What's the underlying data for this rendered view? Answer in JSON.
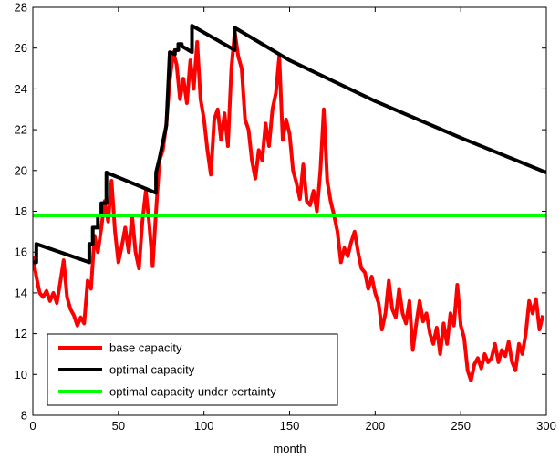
{
  "chart_data": {
    "type": "line",
    "title": "",
    "xlabel": "month",
    "ylabel": "",
    "xlim": [
      0,
      300
    ],
    "ylim": [
      8,
      28
    ],
    "xticks": [
      0,
      50,
      100,
      150,
      200,
      250,
      300
    ],
    "yticks": [
      8,
      10,
      12,
      14,
      16,
      18,
      20,
      22,
      24,
      26,
      28
    ],
    "grid": false,
    "legend_position": "bottom-left",
    "series": [
      {
        "name": "base capacity",
        "color": "#ff0000",
        "x": [
          0,
          2,
          4,
          6,
          8,
          10,
          12,
          14,
          16,
          18,
          20,
          22,
          24,
          26,
          28,
          30,
          32,
          34,
          36,
          38,
          40,
          42,
          44,
          46,
          48,
          50,
          52,
          54,
          56,
          58,
          60,
          62,
          64,
          66,
          68,
          70,
          72,
          74,
          76,
          78,
          80,
          82,
          84,
          86,
          88,
          90,
          92,
          94,
          96,
          98,
          100,
          102,
          104,
          106,
          108,
          110,
          112,
          114,
          116,
          118,
          120,
          122,
          124,
          126,
          128,
          130,
          132,
          134,
          136,
          138,
          140,
          142,
          144,
          146,
          148,
          150,
          152,
          154,
          156,
          158,
          160,
          162,
          164,
          166,
          168,
          170,
          172,
          174,
          176,
          178,
          180,
          182,
          184,
          186,
          188,
          190,
          192,
          194,
          196,
          198,
          200,
          202,
          204,
          206,
          208,
          210,
          212,
          214,
          216,
          218,
          220,
          222,
          224,
          226,
          228,
          230,
          232,
          234,
          236,
          238,
          240,
          242,
          244,
          246,
          248,
          250,
          252,
          254,
          256,
          258,
          260,
          262,
          264,
          266,
          268,
          270,
          272,
          274,
          276,
          278,
          280,
          282,
          284,
          286,
          288,
          290,
          292,
          294,
          296,
          298
        ],
        "y": [
          15.8,
          14.8,
          14.0,
          13.8,
          14.1,
          13.6,
          14.0,
          13.5,
          14.5,
          15.6,
          13.8,
          13.2,
          12.9,
          12.4,
          12.8,
          12.5,
          14.6,
          14.2,
          16.8,
          16.0,
          17.2,
          18.5,
          17.5,
          19.5,
          17.0,
          15.5,
          16.3,
          17.2,
          16.0,
          17.8,
          16.0,
          15.2,
          17.5,
          19.0,
          17.4,
          15.3,
          18.0,
          20.5,
          21.0,
          22.3,
          24.4,
          25.8,
          25.2,
          23.5,
          24.5,
          23.3,
          25.4,
          24.0,
          26.3,
          23.5,
          22.5,
          21.0,
          19.8,
          22.5,
          23.0,
          21.5,
          22.8,
          21.2,
          25.0,
          26.8,
          25.6,
          25.0,
          22.5,
          22.0,
          20.5,
          19.6,
          21.0,
          20.5,
          22.3,
          21.2,
          23.0,
          23.8,
          25.6,
          21.5,
          22.5,
          21.8,
          20.0,
          19.4,
          18.6,
          20.3,
          18.5,
          18.3,
          19.0,
          18.0,
          20.0,
          23.0,
          19.5,
          18.5,
          17.8,
          17.0,
          15.5,
          16.2,
          15.8,
          16.5,
          17.0,
          16.0,
          15.2,
          15.0,
          14.2,
          14.8,
          14.0,
          13.5,
          12.2,
          13.0,
          14.6,
          13.2,
          12.8,
          14.2,
          13.0,
          12.5,
          13.6,
          11.2,
          12.5,
          13.6,
          12.6,
          13.0,
          12.0,
          11.5,
          12.3,
          11.0,
          12.5,
          11.5,
          13.0,
          12.4,
          14.4,
          12.4,
          11.8,
          10.2,
          9.7,
          10.5,
          10.8,
          10.3,
          11.0,
          10.6,
          10.8,
          11.5,
          10.6,
          11.2,
          10.9,
          11.6,
          10.6,
          10.2,
          11.5,
          11.0,
          12.0,
          13.6,
          13.0,
          13.7,
          12.2,
          12.9
        ]
      },
      {
        "name": "optimal capacity",
        "color": "#000000",
        "x": [
          0,
          2,
          2,
          33,
          33,
          35,
          35,
          38,
          38,
          40,
          40,
          43,
          43,
          72,
          72,
          74,
          74,
          76,
          76,
          78,
          78,
          80,
          80,
          83,
          83,
          85,
          85,
          87,
          87,
          93,
          93,
          118,
          118,
          150,
          200,
          250,
          300
        ],
        "y": [
          15.5,
          15.5,
          16.4,
          15.5,
          16.4,
          16.4,
          17.2,
          17.2,
          17.8,
          17.8,
          18.4,
          18.4,
          19.9,
          18.9,
          19.9,
          20.6,
          20.6,
          21.4,
          21.4,
          22.2,
          22.2,
          25.8,
          25.8,
          25.7,
          25.9,
          25.9,
          26.2,
          26.2,
          26.1,
          25.8,
          27.1,
          25.9,
          27.0,
          25.4,
          23.4,
          21.6,
          19.9
        ]
      },
      {
        "name": "optimal capacity under certainty",
        "color": "#00ff00",
        "x": [
          0,
          300
        ],
        "y": [
          17.8,
          17.8
        ]
      }
    ]
  }
}
